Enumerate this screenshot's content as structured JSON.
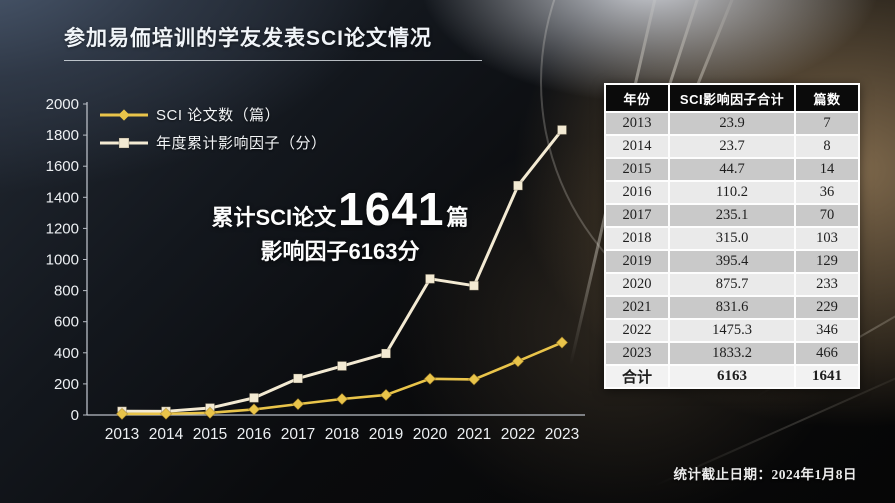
{
  "slide": {
    "title": "参加易侕培训的学友发表SCI论文情况",
    "footer": "统计截止日期：2024年1月8日",
    "colors": {
      "gold_series": "#e9c44a",
      "cream_series": "#f3ead3",
      "axis": "#b9bec6",
      "tick_label": "#edf0f3",
      "table_header_bg": "#0b0b0b",
      "table_row_dark": "#c9c9c9",
      "table_row_light": "#eaeaea"
    }
  },
  "annotation": {
    "prefix": "累计SCI论文",
    "number": "1641",
    "suffix": "篇",
    "line2": "影响因子6163分"
  },
  "chart_data": {
    "type": "line",
    "x": [
      "2013",
      "2014",
      "2015",
      "2016",
      "2017",
      "2018",
      "2019",
      "2020",
      "2021",
      "2022",
      "2023"
    ],
    "series": [
      {
        "name": "SCI 论文数（篇）",
        "color": "#e9c44a",
        "marker": "diamond",
        "values": [
          7,
          8,
          14,
          36,
          70,
          103,
          129,
          233,
          229,
          346,
          466
        ]
      },
      {
        "name": "年度累计影响因子（分）",
        "color": "#f3ead3",
        "marker": "square",
        "values": [
          23.9,
          23.7,
          44.7,
          110.2,
          235.1,
          315.0,
          395.4,
          875.7,
          831.6,
          1475.3,
          1833.2
        ]
      }
    ],
    "ylim": [
      0,
      2000
    ],
    "ytick_step": 200,
    "grid": false,
    "legend_position": "top-left"
  },
  "table": {
    "headers": [
      "年份",
      "SCI影响因子合计",
      "篇数"
    ],
    "rows": [
      [
        "2013",
        "23.9",
        "7"
      ],
      [
        "2014",
        "23.7",
        "8"
      ],
      [
        "2015",
        "44.7",
        "14"
      ],
      [
        "2016",
        "110.2",
        "36"
      ],
      [
        "2017",
        "235.1",
        "70"
      ],
      [
        "2018",
        "315.0",
        "103"
      ],
      [
        "2019",
        "395.4",
        "129"
      ],
      [
        "2020",
        "875.7",
        "233"
      ],
      [
        "2021",
        "831.6",
        "229"
      ],
      [
        "2022",
        "1475.3",
        "346"
      ],
      [
        "2023",
        "1833.2",
        "466"
      ]
    ],
    "total_row": [
      "合计",
      "6163",
      "1641"
    ]
  }
}
